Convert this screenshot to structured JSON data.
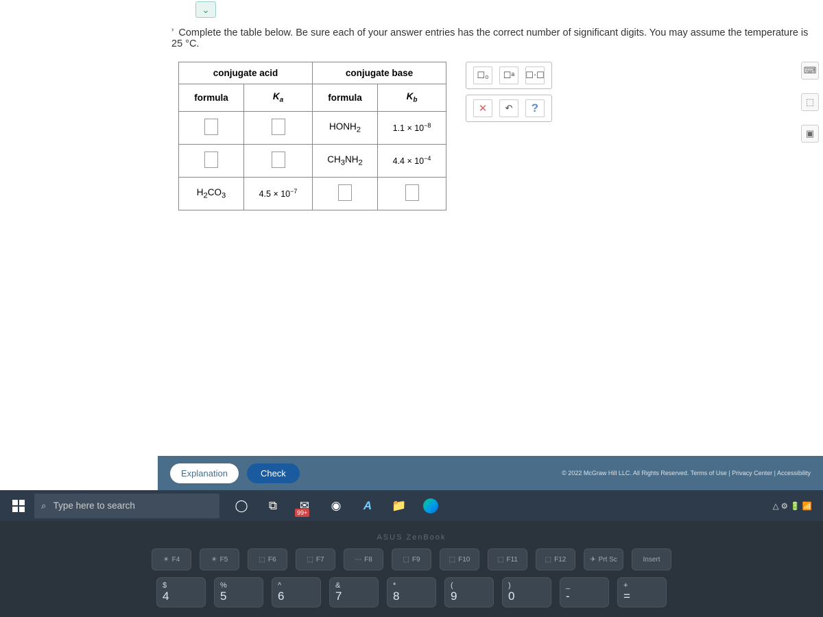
{
  "instruction": {
    "prefix": "›",
    "text": "Complete the table below. Be sure each of your answer entries has the correct number of significant digits. You may assume the temperature is 25 °C."
  },
  "table": {
    "group1": "conjugate acid",
    "group2": "conjugate base",
    "col_formula": "formula",
    "col_ka_html": "K<sub>a</sub>",
    "col_kb_html": "K<sub>b</sub>",
    "rows": [
      {
        "acid_formula": "",
        "ka": "",
        "base_formula_html": "HONH<sub>2</sub>",
        "kb_html": "1.1 × 10<sup>−8</sup>",
        "acid_empty": true,
        "ka_empty": true
      },
      {
        "acid_formula": "",
        "ka": "",
        "base_formula_html": "CH<sub>3</sub>NH<sub>2</sub>",
        "kb_html": "4.4 × 10<sup>−4</sup>",
        "acid_empty": true,
        "ka_empty": true
      },
      {
        "acid_formula_html": "H<sub>2</sub>CO<sub>3</sub>",
        "ka_html": "4.5 × 10<sup>−7</sup>",
        "base_formula": "",
        "kb": "",
        "base_empty": true,
        "kb_empty": true
      }
    ]
  },
  "toolbox": {
    "template1": "☐₀",
    "template2": "☐ᵃ",
    "template3": "☐⋅☐",
    "clear": "✕",
    "undo": "↶",
    "help": "?"
  },
  "side_tools": {
    "calculator": "⌨",
    "periodic": "⬚",
    "data": "▣"
  },
  "footer": {
    "explanation": "Explanation",
    "check": "Check",
    "copyright": "© 2022 McGraw Hill LLC. All Rights Reserved.  Terms of Use | Privacy Center | Accessibility"
  },
  "taskbar": {
    "search_placeholder": "Type here to search",
    "badge": "99+",
    "tray": "△  ⚙  🔋  📶"
  },
  "keyboard": {
    "brand": "ASUS  ZenBook",
    "frow": [
      "F4",
      "F5",
      "F6",
      "F7",
      "F8",
      "F9",
      "F10",
      "F11",
      "F12",
      "Prt Sc",
      "Insert"
    ],
    "ficons": [
      "☀",
      "☀",
      "⬚",
      "⬚",
      "⋯",
      "⬚",
      "⬚",
      "⬚",
      "⬚",
      "✈",
      ""
    ],
    "numrow": [
      {
        "sym": "$",
        "num": "4"
      },
      {
        "sym": "%",
        "num": "5"
      },
      {
        "sym": "^",
        "num": "6"
      },
      {
        "sym": "&",
        "num": "7"
      },
      {
        "sym": "*",
        "num": "8"
      },
      {
        "sym": "(",
        "num": "9"
      },
      {
        "sym": ")",
        "num": "0"
      },
      {
        "sym": "_",
        "num": "-"
      },
      {
        "sym": "+",
        "num": "="
      }
    ]
  }
}
